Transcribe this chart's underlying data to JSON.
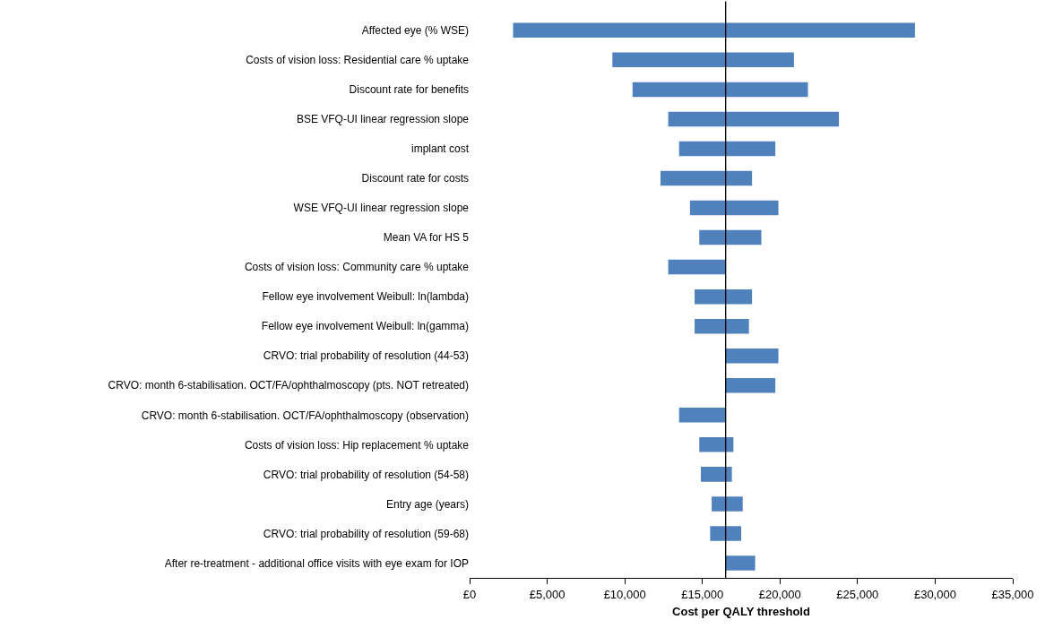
{
  "chart_data": {
    "type": "bar",
    "orientation": "horizontal",
    "xlabel": "Cost per QALY threshold",
    "categories": [
      "Affected eye (% WSE)",
      "Costs of vision loss: Residential care % uptake",
      "Discount rate for benefits",
      "BSE VFQ-UI linear regression slope",
      "implant cost",
      "Discount rate for costs",
      "WSE VFQ-UI linear regression slope",
      "Mean VA for HS 5",
      "Costs of vision loss: Community care % uptake",
      "Fellow eye involvement Weibull: ln(lambda)",
      "Fellow eye involvement Weibull: ln(gamma)",
      "CRVO: trial probability of resolution (44-53)",
      "CRVO: month 6-stabilisation. OCT/FA/ophthalmoscopy (pts. NOT retreated)",
      "CRVO: month 6-stabilisation. OCT/FA/ophthalmoscopy (observation)",
      "Costs of vision loss: Hip replacement % uptake",
      "CRVO: trial probability of resolution (54-58)",
      "Entry age (years)",
      "CRVO: trial probability of resolution (59-68)",
      "After re-treatment - additional office visits with eye exam for IOP"
    ],
    "base": [
      2800,
      9200,
      10500,
      12800,
      13500,
      12300,
      14200,
      14800,
      12800,
      14500,
      14500,
      16500,
      16500,
      13500,
      14800,
      14900,
      15600,
      15500,
      16500
    ],
    "values": [
      25900,
      11700,
      11300,
      11000,
      6200,
      5900,
      5700,
      4000,
      3700,
      3700,
      3500,
      3400,
      3200,
      3000,
      2200,
      2000,
      2000,
      2000,
      1900
    ],
    "color": "#4f81bd",
    "xlim": [
      0,
      35000
    ],
    "xticks": [
      {
        "value": 0,
        "label": "£0"
      },
      {
        "value": 5000,
        "label": "£5,000"
      },
      {
        "value": 10000,
        "label": "£10,000"
      },
      {
        "value": 15000,
        "label": "£15,000"
      },
      {
        "value": 20000,
        "label": "£20,000"
      },
      {
        "value": 25000,
        "label": "£25,000"
      },
      {
        "value": 30000,
        "label": "£30,000"
      },
      {
        "value": 35000,
        "label": "£35,000"
      }
    ],
    "ref_lines": [
      {
        "axis": "x",
        "value": 16500,
        "color": "#000000"
      }
    ]
  }
}
